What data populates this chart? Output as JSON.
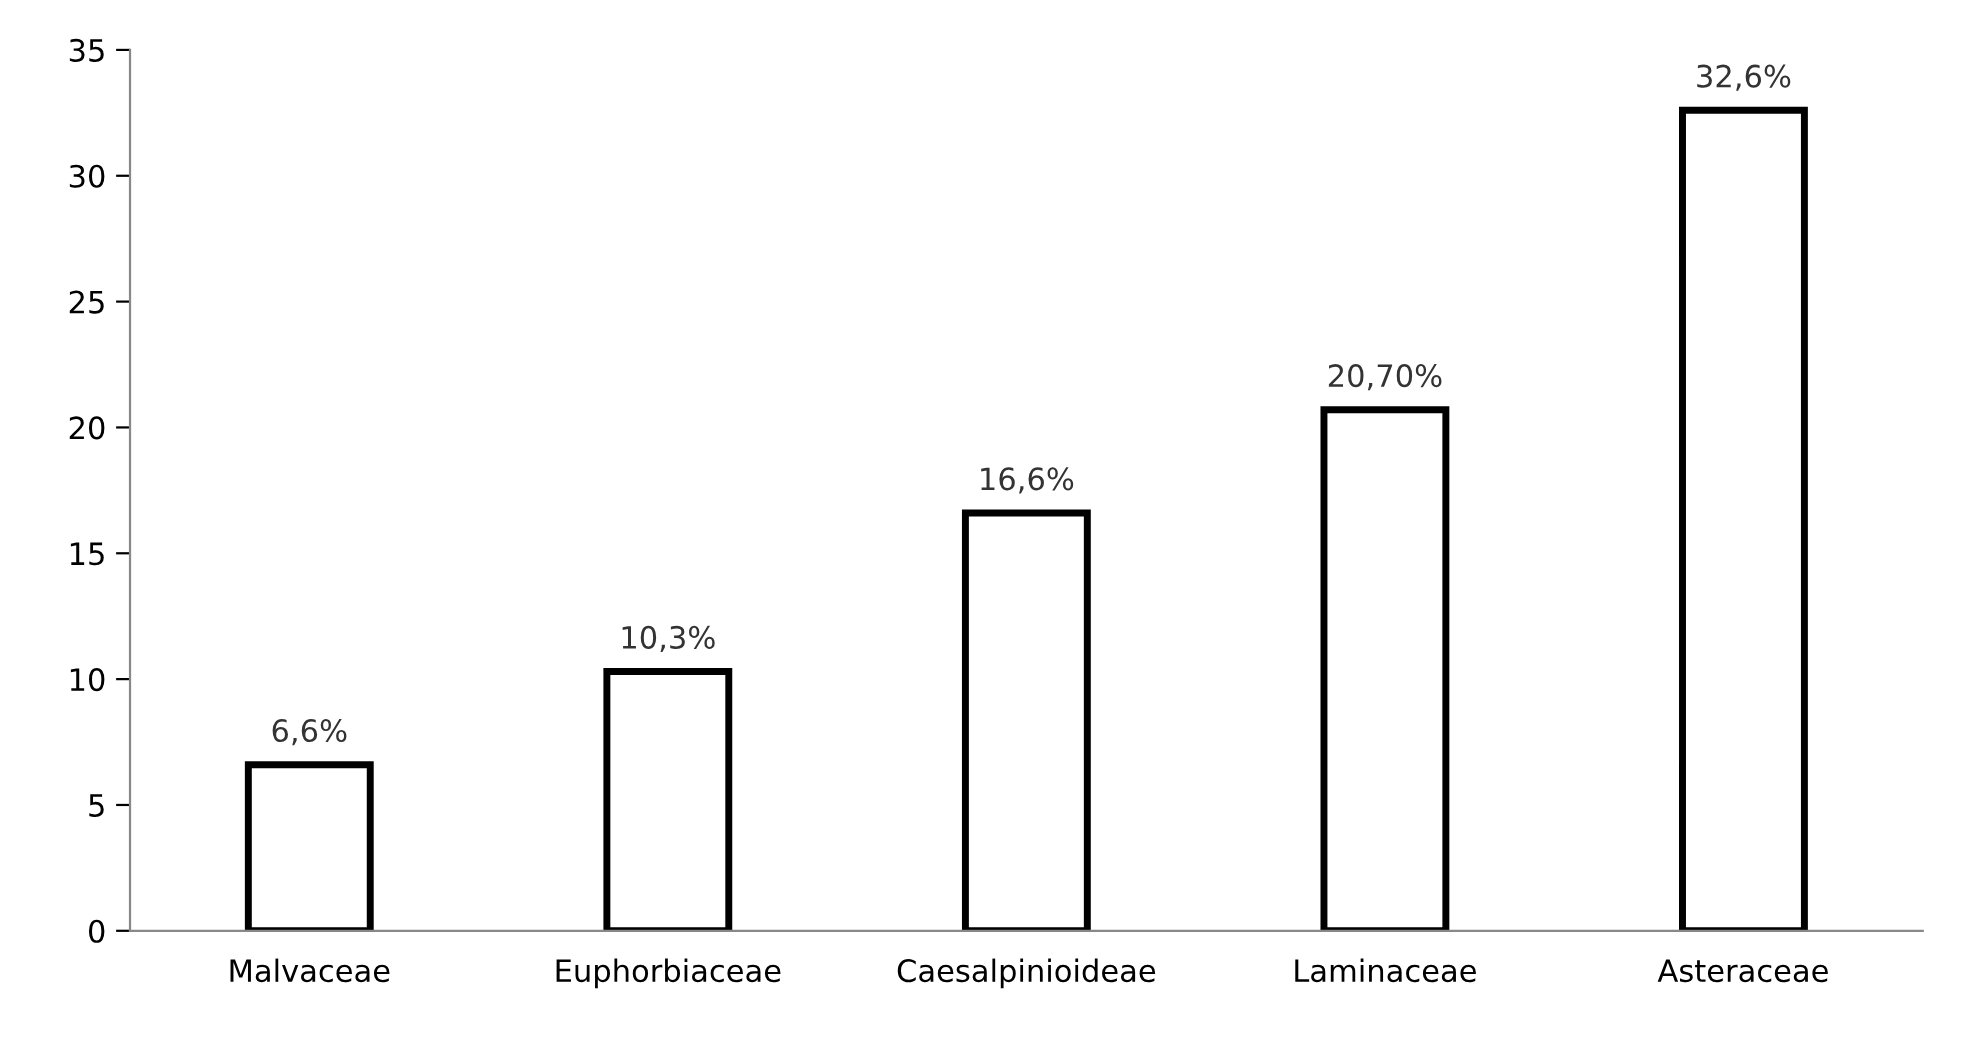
{
  "chart_data": {
    "type": "bar",
    "categories": [
      "Malvaceae",
      "Euphorbiaceae",
      "Caesalpinioideae",
      "Laminaceae",
      "Asteraceae"
    ],
    "values": [
      6.6,
      10.3,
      16.6,
      20.7,
      32.6
    ],
    "value_labels": [
      "6,6%",
      "10,3%",
      "16,6%",
      "20,70%",
      "32,6%"
    ],
    "color": "#ffffff",
    "ylim": [
      0,
      35
    ],
    "yticks": [
      0,
      5,
      10,
      15,
      20,
      25,
      30,
      35
    ],
    "grid": false
  }
}
